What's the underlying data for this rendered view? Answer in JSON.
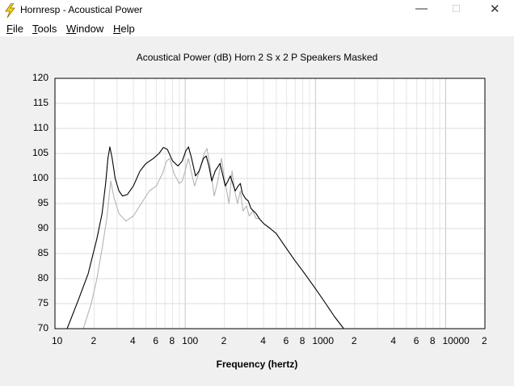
{
  "window": {
    "title": "Hornresp - Acoustical Power",
    "menu": [
      "File",
      "Tools",
      "Window",
      "Help"
    ]
  },
  "chart_data": {
    "type": "line",
    "title": "Acoustical Power (dB)   Horn   2 S x 2 P Speakers   Masked",
    "x_label": "Frequency (hertz)",
    "xscale": "log",
    "grid": true,
    "xlim": [
      10,
      20000
    ],
    "ylim": [
      70,
      120
    ],
    "xticks": [
      10,
      {
        "value": 20,
        "label": "2"
      },
      {
        "value": 40,
        "label": "4"
      },
      {
        "value": 60,
        "label": "6"
      },
      {
        "value": 80,
        "label": "8"
      },
      100,
      {
        "value": 200,
        "label": "2"
      },
      {
        "value": 400,
        "label": "4"
      },
      {
        "value": 600,
        "label": "6"
      },
      {
        "value": 800,
        "label": "8"
      },
      1000,
      {
        "value": 2000,
        "label": "2"
      },
      {
        "value": 4000,
        "label": "4"
      },
      {
        "value": 6000,
        "label": "6"
      },
      {
        "value": 8000,
        "label": "8"
      },
      10000,
      {
        "value": 20000,
        "label": "2"
      }
    ],
    "x_minor_gridlines": [
      30,
      50,
      70,
      90,
      300,
      500,
      700,
      900,
      3000,
      5000,
      7000,
      9000
    ],
    "yticks": [
      70,
      75,
      80,
      85,
      90,
      95,
      100,
      105,
      110,
      115,
      120
    ],
    "series": [
      {
        "color": "#b4b4b4",
        "x": [
          16.5,
          19,
          21,
          23,
          25,
          26.8,
          28.5,
          31,
          35,
          40,
          46,
          53,
          60,
          67,
          72,
          76,
          82,
          90,
          95,
          101,
          106,
          112,
          118,
          127,
          140,
          147,
          155,
          167,
          178,
          190,
          200,
          217,
          229,
          240,
          252,
          265,
          278,
          295,
          310,
          330,
          350,
          370
        ],
        "values": [
          70,
          75,
          80,
          86,
          92,
          99.5,
          96,
          93,
          91.5,
          92.5,
          95,
          97.5,
          98.5,
          101,
          103.5,
          104,
          101,
          99,
          99.5,
          102,
          104,
          101,
          98.5,
          101,
          105,
          106,
          102.5,
          96.5,
          99.5,
          104,
          100,
          95,
          101.5,
          97.5,
          95,
          97.5,
          93.5,
          94.5,
          92.5,
          93.5,
          92,
          92
        ]
      },
      {
        "color": "#000000",
        "x": [
          12.4,
          15,
          18,
          21,
          23,
          24.5,
          25.5,
          26.4,
          27.5,
          29,
          31,
          33,
          36,
          40,
          45,
          50,
          57,
          63,
          68,
          73,
          80,
          88,
          95,
          101,
          106,
          112,
          120,
          128,
          138,
          145,
          152,
          160,
          170,
          185,
          195,
          203,
          213,
          222,
          232,
          242,
          255,
          265,
          275,
          290,
          305,
          320,
          350,
          370,
          400,
          450,
          500,
          600,
          700,
          800,
          1000,
          1200,
          1400,
          1650
        ],
        "values": [
          70,
          75.5,
          81,
          88,
          93,
          99,
          104,
          106.3,
          104,
          100,
          97.5,
          96.5,
          96.8,
          98.5,
          101.5,
          103,
          104,
          105,
          106.2,
          105.8,
          103.5,
          102.5,
          103.5,
          105.5,
          106.3,
          104,
          100.5,
          101.5,
          104,
          104.5,
          102.5,
          99.5,
          101.5,
          103,
          100.5,
          98.5,
          99.5,
          100.5,
          99,
          97.5,
          98.5,
          99,
          97,
          96,
          95.5,
          94,
          93,
          92,
          91,
          90,
          89,
          86,
          83.5,
          81.5,
          78,
          75,
          72.4,
          70
        ]
      }
    ]
  }
}
